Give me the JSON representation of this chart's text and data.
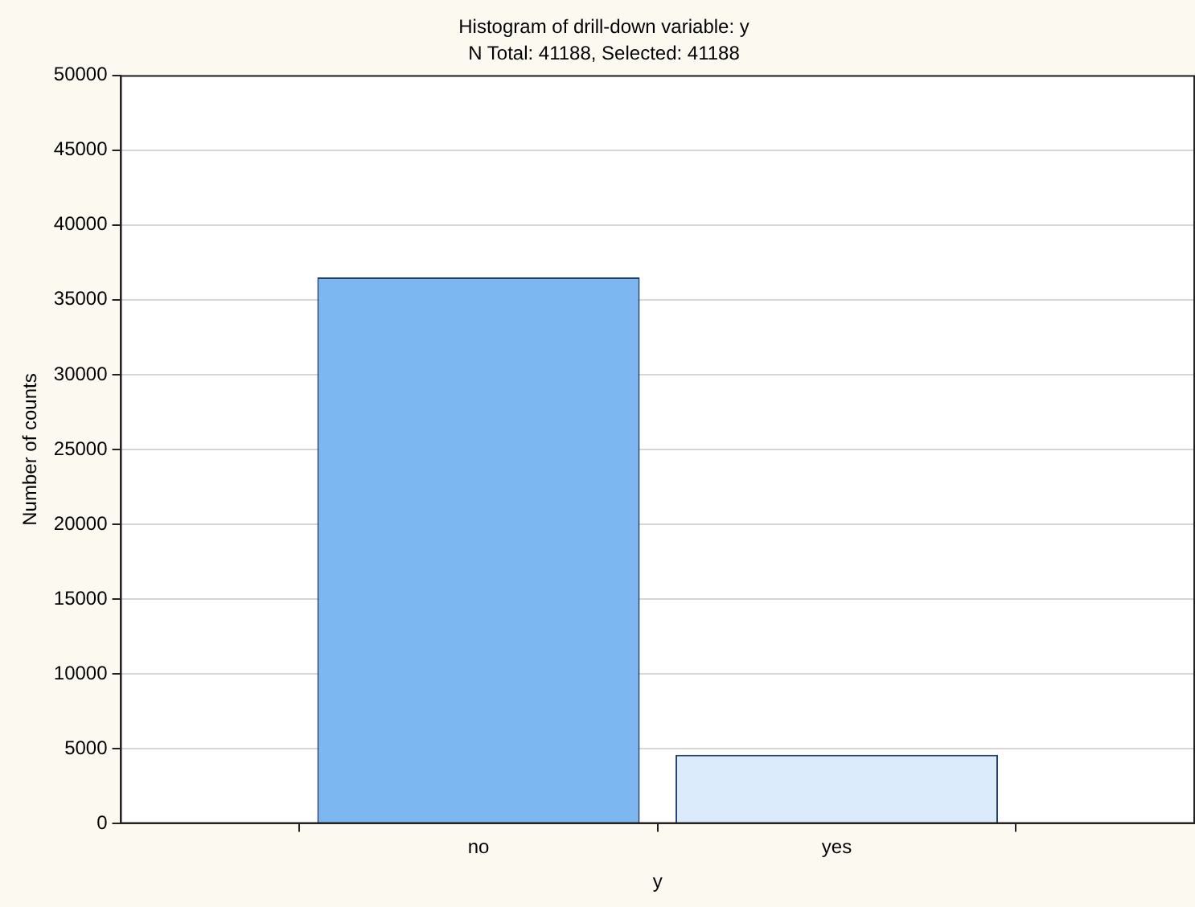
{
  "chart_data": {
    "type": "bar",
    "title": "Histogram of drill-down variable: y",
    "subtitle": "N Total: 41188, Selected: 41188",
    "xlabel": "y",
    "ylabel": "Number of counts",
    "categories": [
      "no",
      "yes"
    ],
    "values": [
      36500,
      4600
    ],
    "colors": [
      "#7db7f2",
      "#dcebfb"
    ],
    "ylim": [
      0,
      50000
    ],
    "yticks": [
      0,
      5000,
      10000,
      15000,
      20000,
      25000,
      30000,
      35000,
      40000,
      45000,
      50000
    ],
    "grid": "y"
  }
}
